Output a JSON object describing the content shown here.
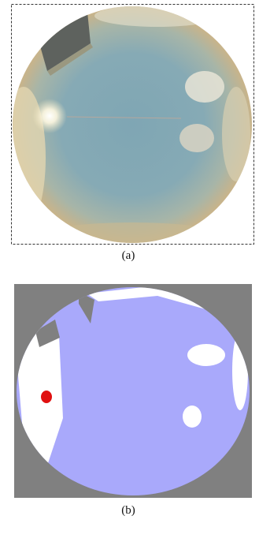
{
  "figure": {
    "panels": [
      {
        "caption": "(a)"
      },
      {
        "caption": "(b)"
      }
    ]
  }
}
